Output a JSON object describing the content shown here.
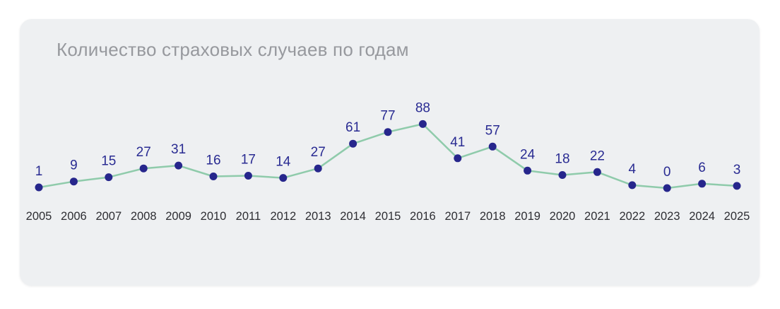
{
  "chart_data": {
    "type": "line",
    "title": "Количество страховых случаев по годам",
    "categories": [
      "2005",
      "2006",
      "2007",
      "2008",
      "2009",
      "2010",
      "2011",
      "2012",
      "2013",
      "2014",
      "2015",
      "2016",
      "2017",
      "2018",
      "2019",
      "2020",
      "2021",
      "2022",
      "2023",
      "2024",
      "2025"
    ],
    "values": [
      1,
      9,
      15,
      27,
      31,
      16,
      17,
      14,
      27,
      61,
      77,
      88,
      41,
      57,
      24,
      18,
      22,
      4,
      0,
      6,
      3
    ],
    "xlabel": "",
    "ylabel": "",
    "ylim": [
      0,
      100
    ],
    "grid": false,
    "legend": false,
    "point_labels": true,
    "colors": {
      "page_background": "#ffffff",
      "card_background": "#eef0f2",
      "title_text": "#97999e",
      "line": "#8fcbab",
      "point": "#26268c",
      "value_label": "#292b92",
      "year_label": "#2e2e33"
    }
  }
}
